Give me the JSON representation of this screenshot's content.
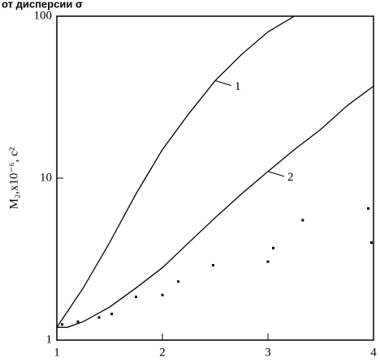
{
  "chart_data": {
    "type": "line",
    "title": "от дисперсии σ",
    "y_label": "M₂,x10⁻⁶, c²",
    "xlim": [
      1,
      4
    ],
    "xticks": [
      1,
      2,
      3,
      4
    ],
    "ylim": [
      1,
      100
    ],
    "yticks": [
      1,
      10,
      100
    ],
    "log_y": true,
    "series": [
      {
        "name": "1",
        "color": "#000000",
        "x": [
          1,
          1.1,
          1.25,
          1.5,
          1.75,
          2,
          2.25,
          2.5,
          2.75,
          3,
          3.25
        ],
        "values": [
          1.2,
          1.5,
          2.1,
          4,
          8,
          15,
          25,
          40,
          58,
          80,
          100
        ]
      },
      {
        "name": "2",
        "color": "#000000",
        "x": [
          1,
          1.1,
          1.25,
          1.5,
          1.75,
          2,
          2.25,
          2.5,
          2.75,
          3,
          3.25,
          3.5,
          3.75,
          4
        ],
        "values": [
          1.2,
          1.2,
          1.3,
          1.6,
          2.1,
          2.8,
          4,
          5.7,
          8,
          11,
          15,
          20,
          28,
          37
        ]
      }
    ],
    "points": {
      "color": "#000000",
      "x": [
        1.05,
        1.2,
        1.4,
        1.52,
        1.75,
        2,
        2.15,
        2.48,
        3,
        3.05,
        3.33,
        3.95,
        3.98
      ],
      "values": [
        1.25,
        1.3,
        1.38,
        1.45,
        1.85,
        1.9,
        2.3,
        2.9,
        3.05,
        3.7,
        5.5,
        6.5,
        4
      ]
    }
  }
}
